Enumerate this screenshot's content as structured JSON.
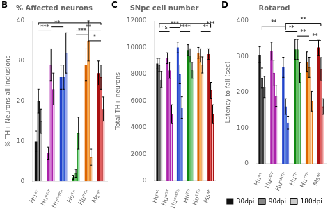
{
  "chart_data": [
    {
      "type": "bar",
      "title": "% Affected neurons",
      "panel_label": "B",
      "ylabel": "% TH+ Neurons all inclusions",
      "categories": [
        "Huʷᵗ",
        "Huᵅᴳᵀ",
        "Huᵅᴹᵀʰ",
        "Huᵀʰ",
        "Huᵀᵀʰ",
        "Msʷᵗ"
      ],
      "series": [
        {
          "name": "30dpi",
          "colors": [
            "#111111",
            "#aa22aa",
            "#2244cc",
            "#118811",
            "#dd6600",
            "#aa1111"
          ],
          "values": [
            10,
            7,
            26,
            1,
            29,
            27
          ],
          "errors": [
            2.5,
            1.5,
            3,
            0.5,
            4,
            3
          ]
        },
        {
          "name": "90dpi",
          "colors": [
            "#888888",
            "#cc66cc",
            "#4477dd",
            "#44bb44",
            "#ffaa33",
            "#dd4444"
          ],
          "values": [
            20,
            29,
            26,
            2,
            35,
            26
          ],
          "errors": [
            3,
            4,
            3,
            1,
            5,
            3
          ]
        },
        {
          "name": "180dpi",
          "colors": [
            "#cccccc",
            "#eebbee",
            "#99aaee",
            "#88dd99",
            "#ffddaa",
            "#ffbbbb"
          ],
          "values": [
            15,
            23,
            32,
            12,
            6,
            18
          ],
          "errors": [
            3,
            4,
            5,
            4,
            2,
            3
          ]
        }
      ],
      "ylim": [
        0,
        40
      ],
      "yticks": [
        0,
        10,
        20,
        30,
        40
      ],
      "grid": false,
      "annotations": [
        {
          "text": "***",
          "from": "Huʷᵗ",
          "to": "Huᵅᴳᵀ",
          "y": 37.5
        },
        {
          "text": "**",
          "from": "Huᵅᴳᵀ",
          "to": "Huᵅᴹᵀʰ",
          "y": 38.5
        },
        {
          "from": "Huʷᵗ",
          "to": "Msʷᵗ",
          "y": 39.5,
          "drop": 39.0
        },
        {
          "text": "***",
          "from": "Huᵀʰ",
          "to": "Huᵀᵀʰ",
          "y": 36.5
        },
        {
          "text": "*",
          "from": "Huᵀᵀʰ",
          "to": "Msʷᵗ",
          "y": 35
        },
        {
          "text": "**",
          "from": "Huᵀʰ",
          "to": "Msʷᵗ",
          "y": 37.5
        }
      ]
    },
    {
      "type": "bar",
      "title": "SNpc cell number",
      "panel_label": "C",
      "ylabel": "Total TH+ neurons",
      "categories": [
        "Huʷᵗ",
        "Huᵅᴳᵀ",
        "Huᵅᴹᵀʰ",
        "Huᵀʰ",
        "Huᵀᵀʰ",
        "Msʷᵗ"
      ],
      "series": [
        {
          "name": "30dpi",
          "colors": [
            "#111111",
            "#aa22aa",
            "#2244cc",
            "#118811",
            "#dd6600",
            "#aa1111"
          ],
          "values": [
            8800,
            9200,
            10000,
            9800,
            9600,
            9500
          ],
          "errors": [
            400,
            400,
            400,
            400,
            400,
            400
          ]
        },
        {
          "name": "90dpi",
          "colors": [
            "#888888",
            "#cc66cc",
            "#4477dd",
            "#44bb44",
            "#ffaa33",
            "#dd4444"
          ],
          "values": [
            8700,
            8300,
            8000,
            9400,
            9400,
            6800
          ],
          "errors": [
            500,
            600,
            700,
            500,
            500,
            600
          ]
        },
        {
          "name": "180dpi",
          "colors": [
            "#cccccc",
            "#eebbee",
            "#99aaee",
            "#88dd99",
            "#ffddaa",
            "#ffbbbb"
          ],
          "values": [
            7600,
            5000,
            5500,
            8300,
            8700,
            5000
          ],
          "errors": [
            600,
            700,
            800,
            600,
            600,
            700
          ]
        }
      ],
      "ylim": [
        0,
        12000
      ],
      "yticks": [
        0,
        2000,
        4000,
        6000,
        8000,
        10000,
        12000
      ],
      "grid": false,
      "annotations": [
        {
          "text": "ns",
          "from": "Huʷᵗ",
          "to": "Huᵅᴳᵀ",
          "y": 11200
        },
        {
          "text": "***",
          "from": "Huᵅᴳᵀ",
          "to": "Huᵅᴹᵀʰ",
          "y": 11500
        },
        {
          "text": "****",
          "from": "Huᵅᴹᵀʰ",
          "to": "Huᵀʰ",
          "y": 11200
        },
        {
          "from": "Huʷᵗ",
          "to": "Msʷᵗ",
          "y": 11800,
          "drop": 11500
        },
        {
          "text": "**",
          "from": "Huᵀᵀʰ",
          "to": "Msʷᵗ",
          "y": 11200
        },
        {
          "text": "***",
          "x": "Msʷᵗ",
          "y": 11550
        }
      ]
    },
    {
      "type": "bar",
      "title": "Rotarod",
      "panel_label": "D",
      "ylabel": "Latency to fall (sec)",
      "categories": [
        "Huʷᵗ",
        "Huᵅᴳᵀ",
        "Huᵅᴹᵀʰ",
        "Huᵀʰ",
        "Huᵀᵀʰ",
        "Msʷᵗ"
      ],
      "series": [
        {
          "name": "30dpi",
          "colors": [
            "#111111",
            "#aa22aa",
            "#2244cc",
            "#118811",
            "#dd6600",
            "#aa1111"
          ],
          "values": [
            305,
            315,
            270,
            320,
            285,
            325
          ],
          "errors": [
            22,
            25,
            28,
            28,
            28,
            22
          ]
        },
        {
          "name": "90dpi",
          "colors": [
            "#888888",
            "#cc66cc",
            "#4477dd",
            "#44bb44",
            "#ffaa33",
            "#dd4444"
          ],
          "values": [
            240,
            255,
            160,
            320,
            270,
            265
          ],
          "errors": [
            28,
            35,
            22,
            28,
            28,
            32
          ]
        },
        {
          "name": "180dpi",
          "colors": [
            "#cccccc",
            "#eebbee",
            "#99aaee",
            "#88dd99",
            "#ffddaa",
            "#ffbbbb"
          ],
          "values": [
            215,
            190,
            115,
            255,
            175,
            160
          ],
          "errors": [
            30,
            30,
            18,
            28,
            28,
            22
          ]
        }
      ],
      "ylim": [
        0,
        400
      ],
      "yticks": [
        0,
        100,
        200,
        300,
        400
      ],
      "grid": false,
      "legend": "bottom",
      "annotations": [
        {
          "text": "**",
          "from": "Huʷᵗ",
          "to": "Huᵅᴹᵀʰ",
          "y": 385,
          "drop": 375
        },
        {
          "text": "**",
          "from": "Huᵅᴹᵀʰ",
          "to": "Msʷᵗ",
          "y": 393,
          "drop": 385
        },
        {
          "text": "**",
          "from": "Huᵅᴹᵀʰ",
          "to": "Huᵀʰ",
          "y": 370
        },
        {
          "text": "**",
          "from": "Huᵀʰ",
          "to": "Huᵀᵀʰ",
          "y": 357
        },
        {
          "text": "**",
          "from": "Huᵀᵀʰ",
          "to": "Msʷᵗ",
          "y": 345
        }
      ]
    }
  ]
}
